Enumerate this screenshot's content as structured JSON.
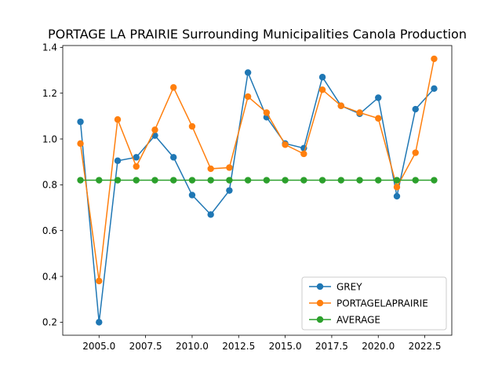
{
  "chart_data": {
    "type": "line",
    "title": "PORTAGE LA PRAIRIE Surrounding Municipalities Canola Production",
    "xlabel": "",
    "ylabel": "",
    "xlim": [
      2003.05,
      2023.95
    ],
    "ylim": [
      0.143,
      1.408
    ],
    "x_ticks": [
      2005.0,
      2007.5,
      2010.0,
      2012.5,
      2015.0,
      2017.5,
      2020.0,
      2022.5
    ],
    "x_tick_labels": [
      "2005.0",
      "2007.5",
      "2010.0",
      "2012.5",
      "2015.0",
      "2017.5",
      "2020.0",
      "2022.5"
    ],
    "y_ticks": [
      0.2,
      0.4,
      0.6,
      0.8,
      1.0,
      1.2,
      1.4
    ],
    "y_tick_labels": [
      "0.2",
      "0.4",
      "0.6",
      "0.8",
      "1.0",
      "1.2",
      "1.4"
    ],
    "grid": false,
    "legend_position": "lower-right",
    "x": [
      2004,
      2005,
      2006,
      2007,
      2008,
      2009,
      2010,
      2011,
      2012,
      2013,
      2014,
      2015,
      2016,
      2017,
      2018,
      2019,
      2020,
      2021,
      2022,
      2023
    ],
    "series": [
      {
        "name": "GREY",
        "color": "#1f77b4",
        "values": [
          1.075,
          0.2,
          0.905,
          0.92,
          1.015,
          0.92,
          0.755,
          0.67,
          0.775,
          1.29,
          1.095,
          0.98,
          0.96,
          1.27,
          1.145,
          1.11,
          1.18,
          0.75,
          1.13,
          1.22
        ]
      },
      {
        "name": "PORTAGELAPRAIRIE",
        "color": "#ff7f0e",
        "values": [
          0.98,
          0.38,
          1.085,
          0.88,
          1.04,
          1.225,
          1.055,
          0.87,
          0.875,
          1.185,
          1.115,
          0.975,
          0.935,
          1.215,
          1.145,
          1.115,
          1.09,
          0.79,
          0.94,
          1.35
        ]
      },
      {
        "name": "AVERAGE",
        "color": "#2ca02c",
        "values": [
          0.82,
          0.82,
          0.82,
          0.82,
          0.82,
          0.82,
          0.82,
          0.82,
          0.82,
          0.82,
          0.82,
          0.82,
          0.82,
          0.82,
          0.82,
          0.82,
          0.82,
          0.82,
          0.82,
          0.82
        ]
      }
    ]
  }
}
